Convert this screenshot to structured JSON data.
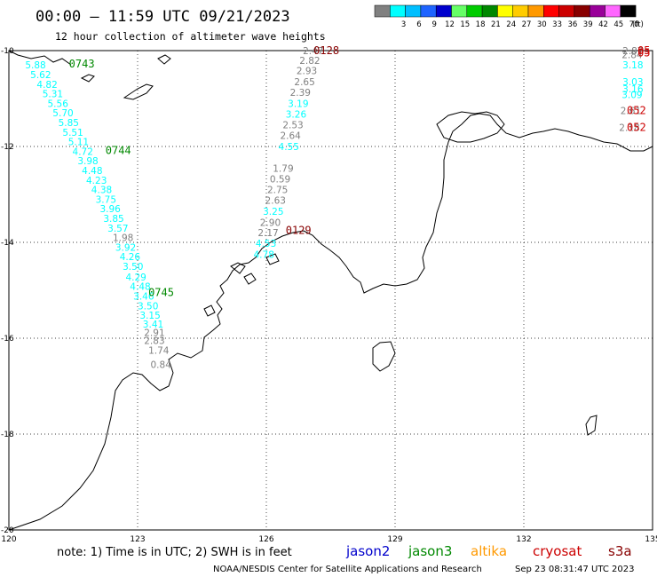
{
  "header": {
    "title": "00:00 – 11:59 UTC 09/21/2023",
    "subtitle": "12 hour collection of altimeter wave heights"
  },
  "legend": {
    "unit": "(ft)",
    "bins": [
      {
        "label": "",
        "color": "#808080"
      },
      {
        "label": "3",
        "color": "#00ffff"
      },
      {
        "label": "6",
        "color": "#00bfff"
      },
      {
        "label": "9",
        "color": "#1e64ff"
      },
      {
        "label": "12",
        "color": "#0000cd"
      },
      {
        "label": "15",
        "color": "#66ff66"
      },
      {
        "label": "18",
        "color": "#00cc00"
      },
      {
        "label": "21",
        "color": "#008800"
      },
      {
        "label": "24",
        "color": "#ffff00"
      },
      {
        "label": "27",
        "color": "#ffcc00"
      },
      {
        "label": "30",
        "color": "#ff9900"
      },
      {
        "label": "33",
        "color": "#ff0000"
      },
      {
        "label": "36",
        "color": "#cc0000"
      },
      {
        "label": "39",
        "color": "#880000"
      },
      {
        "label": "42",
        "color": "#990099"
      },
      {
        "label": "45",
        "color": "#ff66ff"
      },
      {
        "label": "70",
        "color": "#000000"
      }
    ]
  },
  "axes": {
    "lon_ticks": [
      "120",
      "123",
      "126",
      "129",
      "132",
      "135"
    ],
    "lat_ticks": [
      "-10",
      "-12",
      "-14",
      "-16",
      "-18",
      "-20"
    ],
    "lon_range": [
      120,
      135
    ],
    "lat_range": [
      -20,
      -10
    ]
  },
  "passes": [
    {
      "id": "0743",
      "color": "#008800",
      "mission": "jason3",
      "lon": 121.4,
      "lat": -10.28
    },
    {
      "id": "0744",
      "color": "#008800",
      "mission": "jason3",
      "lon": 122.25,
      "lat": -12.08
    },
    {
      "id": "0745",
      "color": "#008800",
      "mission": "jason3",
      "lon": 123.25,
      "lat": -15.05
    },
    {
      "id": "0128",
      "color": "#880000",
      "mission": "s3a",
      "lon": 127.1,
      "lat": -10.0
    },
    {
      "id": "0129",
      "color": "#880000",
      "mission": "s3a",
      "lon": 126.45,
      "lat": -13.75
    },
    {
      "id": "05",
      "color": "#cc0000",
      "mission": "cryosat",
      "lon": 134.65,
      "lat": -10.0
    },
    {
      "id": "05",
      "color": "#cc0000",
      "mission": "cryosat",
      "lon": 134.65,
      "lat": -10.05
    },
    {
      "id": "052",
      "color": "#cc0000",
      "mission": "cryosat",
      "lon": 134.4,
      "lat": -11.25
    },
    {
      "id": "052",
      "color": "#cc0000",
      "mission": "cryosat",
      "lon": 134.4,
      "lat": -11.6
    }
  ],
  "observations": [
    {
      "v": "5.88",
      "lon": 120.38,
      "lat": -10.3,
      "c": "#00ffff"
    },
    {
      "v": "5.62",
      "lon": 120.5,
      "lat": -10.5,
      "c": "#00ffff"
    },
    {
      "v": "4.82",
      "lon": 120.65,
      "lat": -10.7,
      "c": "#00ffff"
    },
    {
      "v": "5.31",
      "lon": 120.78,
      "lat": -10.9,
      "c": "#00ffff"
    },
    {
      "v": "5.56",
      "lon": 120.9,
      "lat": -11.1,
      "c": "#00ffff"
    },
    {
      "v": "5.70",
      "lon": 121.02,
      "lat": -11.3,
      "c": "#00ffff"
    },
    {
      "v": "5.85",
      "lon": 121.15,
      "lat": -11.5,
      "c": "#00ffff"
    },
    {
      "v": "5.51",
      "lon": 121.25,
      "lat": -11.7,
      "c": "#00ffff"
    },
    {
      "v": "5.11",
      "lon": 121.38,
      "lat": -11.9,
      "c": "#00ffff"
    },
    {
      "v": "4.72",
      "lon": 121.48,
      "lat": -12.1,
      "c": "#00ffff"
    },
    {
      "v": "3.98",
      "lon": 121.6,
      "lat": -12.3,
      "c": "#00ffff"
    },
    {
      "v": "4.48",
      "lon": 121.7,
      "lat": -12.5,
      "c": "#00ffff"
    },
    {
      "v": "4.23",
      "lon": 121.8,
      "lat": -12.7,
      "c": "#00ffff"
    },
    {
      "v": "4.38",
      "lon": 121.92,
      "lat": -12.9,
      "c": "#00ffff"
    },
    {
      "v": "3.75",
      "lon": 122.02,
      "lat": -13.1,
      "c": "#00ffff"
    },
    {
      "v": "3.96",
      "lon": 122.12,
      "lat": -13.3,
      "c": "#00ffff"
    },
    {
      "v": "3.85",
      "lon": 122.2,
      "lat": -13.5,
      "c": "#00ffff"
    },
    {
      "v": "3.57",
      "lon": 122.3,
      "lat": -13.7,
      "c": "#00ffff"
    },
    {
      "v": "1.98",
      "lon": 122.42,
      "lat": -13.9,
      "c": "#808080"
    },
    {
      "v": "3.92",
      "lon": 122.48,
      "lat": -14.1,
      "c": "#00ffff"
    },
    {
      "v": "4.26",
      "lon": 122.58,
      "lat": -14.3,
      "c": "#00ffff"
    },
    {
      "v": "3.50",
      "lon": 122.65,
      "lat": -14.5,
      "c": "#00ffff"
    },
    {
      "v": "4.29",
      "lon": 122.72,
      "lat": -14.72,
      "c": "#00ffff"
    },
    {
      "v": "4.48",
      "lon": 122.82,
      "lat": -14.92,
      "c": "#00ffff"
    },
    {
      "v": "3.46",
      "lon": 122.9,
      "lat": -15.12,
      "c": "#00ffff"
    },
    {
      "v": "3.50",
      "lon": 123.0,
      "lat": -15.32,
      "c": "#00ffff"
    },
    {
      "v": "3.15",
      "lon": 123.05,
      "lat": -15.52,
      "c": "#00ffff"
    },
    {
      "v": "3.41",
      "lon": 123.12,
      "lat": -15.7,
      "c": "#00ffff"
    },
    {
      "v": "2.91",
      "lon": 123.15,
      "lat": -15.88,
      "c": "#808080"
    },
    {
      "v": "2.83",
      "lon": 123.15,
      "lat": -16.05,
      "c": "#808080"
    },
    {
      "v": "1.74",
      "lon": 123.25,
      "lat": -16.25,
      "c": "#808080"
    },
    {
      "v": "0.84",
      "lon": 123.3,
      "lat": -16.55,
      "c": "#808080"
    },
    {
      "v": "2.47",
      "lon": 126.85,
      "lat": -10.0,
      "c": "#808080"
    },
    {
      "v": "2.82",
      "lon": 126.77,
      "lat": -10.2,
      "c": "#808080"
    },
    {
      "v": "2.93",
      "lon": 126.7,
      "lat": -10.42,
      "c": "#808080"
    },
    {
      "v": "2.65",
      "lon": 126.65,
      "lat": -10.65,
      "c": "#808080"
    },
    {
      "v": "2.39",
      "lon": 126.55,
      "lat": -10.87,
      "c": "#808080"
    },
    {
      "v": "3.19",
      "lon": 126.5,
      "lat": -11.1,
      "c": "#00ffff"
    },
    {
      "v": "3.26",
      "lon": 126.45,
      "lat": -11.32,
      "c": "#00ffff"
    },
    {
      "v": "2.53",
      "lon": 126.38,
      "lat": -11.55,
      "c": "#808080"
    },
    {
      "v": "2.64",
      "lon": 126.32,
      "lat": -11.77,
      "c": "#808080"
    },
    {
      "v": "4.55",
      "lon": 126.28,
      "lat": -12.0,
      "c": "#00ffff"
    },
    {
      "v": "1.79",
      "lon": 126.15,
      "lat": -12.45,
      "c": "#808080"
    },
    {
      "v": "0.59",
      "lon": 126.08,
      "lat": -12.68,
      "c": "#808080"
    },
    {
      "v": "2.75",
      "lon": 126.02,
      "lat": -12.9,
      "c": "#808080"
    },
    {
      "v": "2.63",
      "lon": 125.97,
      "lat": -13.12,
      "c": "#808080"
    },
    {
      "v": "3.25",
      "lon": 125.92,
      "lat": -13.35,
      "c": "#00ffff"
    },
    {
      "v": "2.90",
      "lon": 125.85,
      "lat": -13.58,
      "c": "#808080"
    },
    {
      "v": "2.17",
      "lon": 125.8,
      "lat": -13.8,
      "c": "#808080"
    },
    {
      "v": "4.53",
      "lon": 125.75,
      "lat": -14.02,
      "c": "#00ffff"
    },
    {
      "v": "4.78",
      "lon": 125.7,
      "lat": -14.25,
      "c": "#00ffff"
    },
    {
      "v": "2.87",
      "lon": 134.3,
      "lat": -10.0,
      "c": "#808080"
    },
    {
      "v": "2.84",
      "lon": 134.28,
      "lat": -10.08,
      "c": "#808080"
    },
    {
      "v": "3.18",
      "lon": 134.3,
      "lat": -10.3,
      "c": "#00ffff"
    },
    {
      "v": "3.03",
      "lon": 134.3,
      "lat": -10.65,
      "c": "#00ffff"
    },
    {
      "v": "3.16",
      "lon": 134.3,
      "lat": -10.8,
      "c": "#00ffff"
    },
    {
      "v": "3.09",
      "lon": 134.28,
      "lat": -10.92,
      "c": "#00ffff"
    },
    {
      "v": "2.61",
      "lon": 134.25,
      "lat": -11.25,
      "c": "#808080"
    },
    {
      "v": "2.18",
      "lon": 134.22,
      "lat": -11.6,
      "c": "#808080"
    }
  ],
  "footer": {
    "note": "note: 1) Time is in UTC; 2) SWH is in feet",
    "missions": [
      {
        "name": "jason2",
        "color": "#0000cc"
      },
      {
        "name": "jason3",
        "color": "#008800"
      },
      {
        "name": "altika",
        "color": "#ff9900"
      },
      {
        "name": "cryosat",
        "color": "#cc0000"
      },
      {
        "name": "s3a",
        "color": "#880000"
      }
    ],
    "credit": "NOAA/NESDIS Center for Satellite Applications and Research",
    "timestamp": "Sep 23 08:31:47 UTC 2023"
  }
}
